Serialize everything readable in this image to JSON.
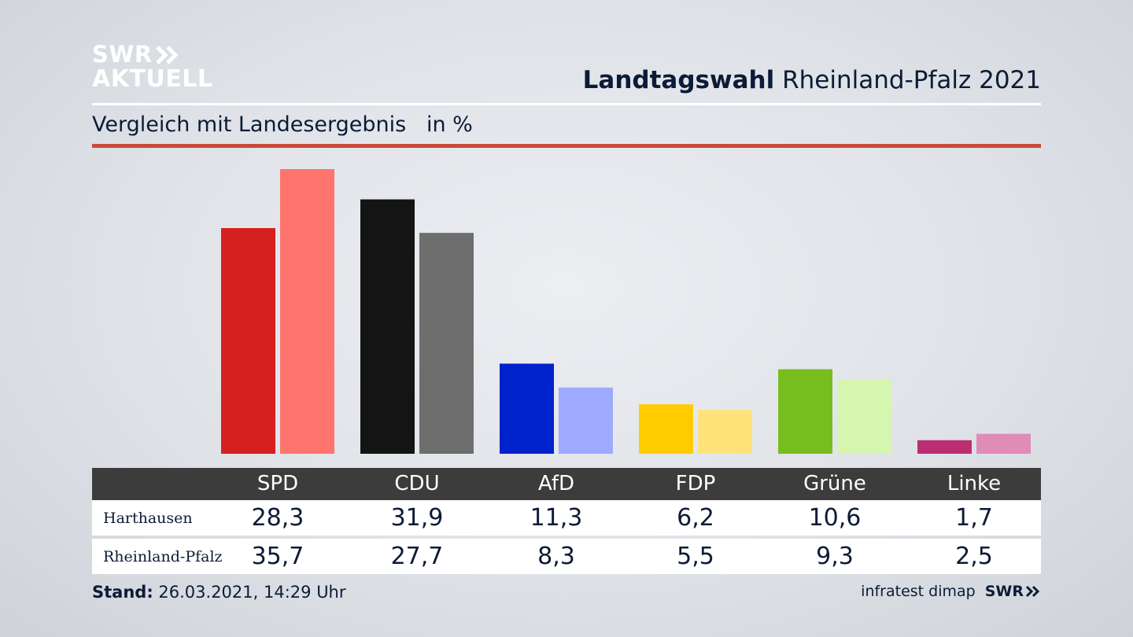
{
  "logo": {
    "line1": "SWR",
    "line2": "AKTUELL",
    "chevron_icon": "double-chevron-right-icon"
  },
  "header": {
    "title_bold": "Landtagswahl",
    "title_rest": "Rheinland-Pfalz 2021"
  },
  "subtitle": {
    "text": "Vergleich mit Landesergebnis",
    "unit": "in %"
  },
  "colors": {
    "accent_rule": "#c94a3a",
    "SPD": [
      "#d52020",
      "#ff756e"
    ],
    "CDU": [
      "#141414",
      "#6e6e6e"
    ],
    "AfD": [
      "#0022cc",
      "#9eaaff"
    ],
    "FDP": [
      "#ffcc00",
      "#ffe37a"
    ],
    "Grüne": [
      "#78bd1e",
      "#d6f5ae"
    ],
    "Linke": [
      "#bb2e72",
      "#e18bb9"
    ]
  },
  "chart_data": {
    "type": "bar",
    "categories": [
      "SPD",
      "CDU",
      "AfD",
      "FDP",
      "Grüne",
      "Linke"
    ],
    "series": [
      {
        "name": "Harthausen",
        "values": [
          28.3,
          31.9,
          11.3,
          6.2,
          10.6,
          1.7
        ]
      },
      {
        "name": "Rheinland-Pfalz",
        "values": [
          35.7,
          27.7,
          8.3,
          5.5,
          9.3,
          2.5
        ]
      }
    ],
    "ylim": [
      0,
      35.7
    ],
    "grid": false,
    "legend": "table below chart"
  },
  "table": {
    "headers": [
      "SPD",
      "CDU",
      "AfD",
      "FDP",
      "Grüne",
      "Linke"
    ],
    "rows": [
      {
        "label": "Harthausen",
        "values": [
          "28,3",
          "31,9",
          "11,3",
          "6,2",
          "10,6",
          "1,7"
        ]
      },
      {
        "label": "Rheinland-Pfalz",
        "values": [
          "35,7",
          "27,7",
          "8,3",
          "5,5",
          "9,3",
          "2,5"
        ]
      }
    ]
  },
  "footer": {
    "stand_label": "Stand:",
    "stand_value": "26.03.2021, 14:29 Uhr",
    "source": "infratest dimap",
    "brand": "SWR"
  }
}
